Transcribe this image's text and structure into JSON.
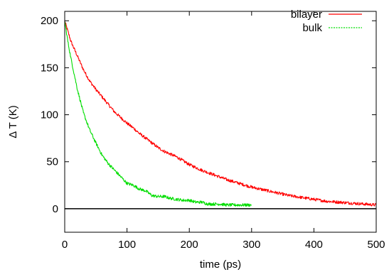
{
  "chart_data": {
    "type": "line",
    "xlabel": "time (ps)",
    "ylabel": "Δ T (K)",
    "xlim": [
      0,
      500
    ],
    "ylim": [
      -25,
      210
    ],
    "xticks": [
      0,
      100,
      200,
      300,
      400,
      500
    ],
    "yticks": [
      0,
      50,
      100,
      150,
      200
    ],
    "x_tick_labels": [
      "0",
      "100",
      "200",
      "300",
      "400",
      "500"
    ],
    "y_tick_labels": [
      "0",
      "50",
      "100",
      "150",
      "200"
    ],
    "grid": false,
    "legend_position": "top-right",
    "zero_line": 0,
    "series": [
      {
        "name": "bilayer",
        "color": "#ff0000",
        "line_style": "solid",
        "x": [
          0,
          10,
          20,
          30,
          40,
          50,
          60,
          70,
          80,
          90,
          100,
          110,
          120,
          130,
          140,
          150,
          160,
          170,
          180,
          190,
          200,
          220,
          240,
          260,
          280,
          300,
          320,
          340,
          360,
          380,
          400,
          420,
          440,
          460,
          480,
          500
        ],
        "values": [
          200,
          178,
          163,
          148,
          136,
          127,
          119,
          111,
          103,
          97,
          91,
          86,
          80,
          75,
          70,
          65,
          61,
          58,
          55,
          51,
          47,
          41,
          36,
          31,
          27,
          23,
          20,
          17,
          14,
          12,
          10,
          8,
          7,
          6,
          5,
          4
        ]
      },
      {
        "name": "bulk",
        "color": "#00dd00",
        "line_style": "dashed",
        "x": [
          0,
          5,
          10,
          20,
          30,
          40,
          50,
          60,
          70,
          80,
          90,
          100,
          110,
          120,
          130,
          140,
          150,
          160,
          170,
          180,
          190,
          200,
          210,
          220,
          230,
          240,
          250,
          260,
          270,
          280,
          290,
          300
        ],
        "values": [
          200,
          178,
          160,
          128,
          102,
          84,
          70,
          57,
          48,
          41,
          34,
          27,
          25,
          21,
          19,
          14,
          13,
          13,
          11,
          10,
          9,
          9,
          7,
          7,
          5,
          5,
          5,
          4,
          4,
          4,
          4,
          4
        ]
      }
    ]
  }
}
